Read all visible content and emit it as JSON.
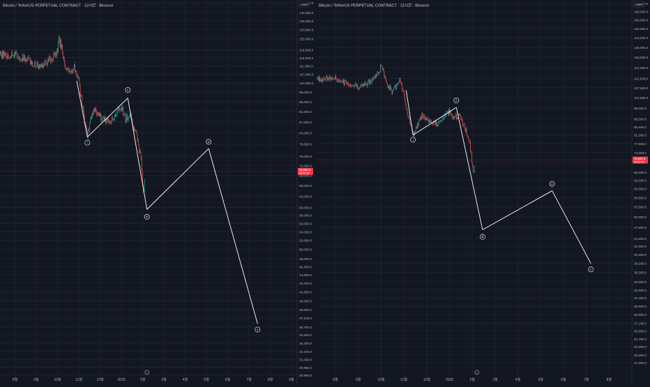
{
  "theme": {
    "background": "#131722",
    "grid": "#1e222d",
    "axis_text": "#b2b5be",
    "up": "#26a69a",
    "down": "#ef5350",
    "wave_line": "#ffffff",
    "price_badge": "#f23645",
    "divider": "#2a2e39"
  },
  "chart_data": [
    {
      "type": "candlestick",
      "title": "Bitcoin / TetherUS PERPETUAL CONTRACT · 12시간 · Binance",
      "currency_label": "USDT",
      "scale": "log",
      "ylim": [
        28950,
        146000
      ],
      "price_ticks": [
        "146,000.0",
        "140,000.0",
        "135,000.0",
        "130,000.0",
        "125,000.0",
        "119,000.0",
        "115,000.0",
        "111,000.0",
        "107,000.0",
        "103,000.0",
        "99,000.0",
        "95,000.0",
        "91,000.0",
        "87,000.0",
        "83,000.0",
        "79,000.0",
        "75,000.0",
        "72,000.0",
        "69,000.0",
        "66,000.0",
        "63,000.0",
        "60,000.0",
        "58,000.0",
        "56,000.0",
        "54,000.0",
        "52,000.0",
        "50,000.0",
        "48,000.0",
        "46,400.0",
        "44,800.0",
        "43,200.0",
        "41,600.0",
        "40,000.0",
        "38,500.0",
        "37,100.0",
        "35,700.0",
        "34,500.0",
        "33,300.0",
        "32,100.0",
        "31,000.0",
        "29,950.0",
        "28,950.0"
      ],
      "time_ticks": [
        {
          "label": "8월",
          "t": 0.5
        },
        {
          "label": "9월",
          "t": 1.5
        },
        {
          "label": "10월",
          "t": 2.5
        },
        {
          "label": "11월",
          "t": 3.5
        },
        {
          "label": "12월",
          "t": 4.5
        },
        {
          "label": "2026",
          "t": 5.5
        },
        {
          "label": "2월",
          "t": 6.5
        },
        {
          "label": "3월",
          "t": 7.5
        },
        {
          "label": "4월",
          "t": 8.5
        },
        {
          "label": "5월",
          "t": 9.5
        },
        {
          "label": "6월",
          "t": 10.5
        },
        {
          "label": "7월",
          "t": 11.5
        },
        {
          "label": "8월",
          "t": 12.5
        },
        {
          "label": "9월",
          "t": 13.5
        }
      ],
      "current_price": 70269,
      "current_price_label": "70,269.3",
      "countdown_label": "05:55:52",
      "candle_path": [
        [
          -0.3,
          117000
        ],
        [
          0.5,
          116000
        ],
        [
          1.0,
          114500
        ],
        [
          1.6,
          111000
        ],
        [
          2.0,
          112500
        ],
        [
          2.5,
          118000
        ],
        [
          2.55,
          124000
        ],
        [
          2.7,
          121000
        ],
        [
          2.8,
          112000
        ],
        [
          3.0,
          108000
        ],
        [
          3.3,
          110000
        ],
        [
          3.5,
          104000
        ],
        [
          3.7,
          91000
        ],
        [
          3.9,
          81500
        ],
        [
          4.0,
          86000
        ],
        [
          4.2,
          91500
        ],
        [
          4.6,
          88000
        ],
        [
          5.0,
          87000
        ],
        [
          5.5,
          93000
        ],
        [
          5.7,
          88000
        ],
        [
          5.9,
          90500
        ],
        [
          6.2,
          82000
        ],
        [
          6.4,
          75000
        ],
        [
          6.55,
          63500
        ],
        [
          6.6,
          70300
        ]
      ],
      "waves": [
        {
          "label": "i",
          "t": 3.9,
          "price": 81500,
          "label_price": 79500,
          "badge": "below"
        },
        {
          "label": "ii",
          "t": 5.8,
          "price": 96500,
          "label_price": 100000,
          "badge": "above"
        },
        {
          "label": "iii",
          "t": 6.7,
          "price": 59500,
          "label_price": 57600,
          "badge": "below"
        },
        {
          "label": "iv",
          "t": 9.6,
          "price": 77500,
          "label_price": 79800,
          "badge": "above"
        },
        {
          "label": "v",
          "t": 11.9,
          "price": 36200,
          "label_price": 35300,
          "badge": "below"
        }
      ],
      "wave_line_start": {
        "t": 3.4,
        "price": 104000
      },
      "bottom_marker": {
        "label": "r",
        "t": 6.7
      }
    },
    {
      "type": "candlestick",
      "title": "Bitcoin / TetherUS PERPETUAL CONTRACT · 12시간 · Binance",
      "currency_label": "USDT",
      "scale": "log",
      "ylim": [
        21500,
        176000
      ],
      "price_ticks": [
        "176,000.0",
        "168,000.0",
        "160,000.0",
        "152,000.0",
        "144,000.0",
        "136,000.0",
        "128,500.0",
        "121,000.0",
        "113,500.0",
        "107,500.0",
        "101,500.0",
        "95,500.0",
        "89,500.0",
        "85,500.0",
        "81,500.0",
        "77,500.0",
        "73,500.0",
        "69,500.0",
        "65,500.0",
        "62,500.0",
        "59,500.0",
        "56,500.0",
        "53,500.0",
        "50,500.0",
        "47,500.0",
        "44,500.0",
        "42,500.0",
        "40,500.0",
        "38,500.0",
        "36,500.0",
        "34,500.0",
        "32,900.0",
        "31,400.0",
        "29,900.0",
        "28,500.0",
        "27,100.0",
        "25,900.0",
        "24,700.0",
        "23,600.0",
        "22,500.0",
        "21,500.0"
      ],
      "time_ticks": [
        {
          "label": "8월",
          "t": 0.5
        },
        {
          "label": "9월",
          "t": 1.5
        },
        {
          "label": "10월",
          "t": 2.5
        },
        {
          "label": "11월",
          "t": 3.5
        },
        {
          "label": "12월",
          "t": 4.5
        },
        {
          "label": "2026",
          "t": 5.5
        },
        {
          "label": "2월",
          "t": 6.5
        },
        {
          "label": "3월",
          "t": 7.5
        },
        {
          "label": "4월",
          "t": 8.5
        },
        {
          "label": "5월",
          "t": 9.5
        },
        {
          "label": "6월",
          "t": 10.5
        },
        {
          "label": "7월",
          "t": 11.5
        },
        {
          "label": "8월",
          "t": 12.5
        },
        {
          "label": "9월",
          "t": 13.5
        }
      ],
      "current_price": 70509,
      "current_price_label": "70,509.3",
      "countdown_label": "05:55:52",
      "candle_path": [
        [
          -0.3,
          113000
        ],
        [
          0.5,
          113500
        ],
        [
          1.0,
          110000
        ],
        [
          1.6,
          108000
        ],
        [
          2.0,
          111500
        ],
        [
          2.4,
          117000
        ],
        [
          2.5,
          123000
        ],
        [
          2.6,
          118000
        ],
        [
          2.8,
          109000
        ],
        [
          3.0,
          104500
        ],
        [
          3.3,
          113000
        ],
        [
          3.5,
          104000
        ],
        [
          3.6,
          96000
        ],
        [
          3.9,
          81500
        ],
        [
          4.0,
          84000
        ],
        [
          4.3,
          91500
        ],
        [
          4.6,
          88500
        ],
        [
          5.0,
          86500
        ],
        [
          5.5,
          94000
        ],
        [
          5.7,
          90000
        ],
        [
          5.9,
          91500
        ],
        [
          6.2,
          84500
        ],
        [
          6.4,
          77000
        ],
        [
          6.55,
          63500
        ],
        [
          6.6,
          70500
        ]
      ],
      "waves": [
        {
          "label": "i",
          "t": 3.9,
          "price": 81500,
          "label_price": 79300,
          "badge": "below"
        },
        {
          "label": "ii",
          "t": 5.8,
          "price": 95800,
          "label_price": 99800,
          "badge": "above"
        },
        {
          "label": "iii",
          "t": 6.95,
          "price": 46800,
          "label_price": 44900,
          "badge": "below"
        },
        {
          "label": "iv",
          "t": 10.0,
          "price": 58800,
          "label_price": 61200,
          "badge": "above"
        },
        {
          "label": "v",
          "t": 11.7,
          "price": 38400,
          "label_price": 37100,
          "badge": "below"
        }
      ],
      "wave_line_start": {
        "t": 3.6,
        "price": 106000
      },
      "bottom_marker": {
        "label": "r",
        "t": 6.7
      }
    }
  ]
}
